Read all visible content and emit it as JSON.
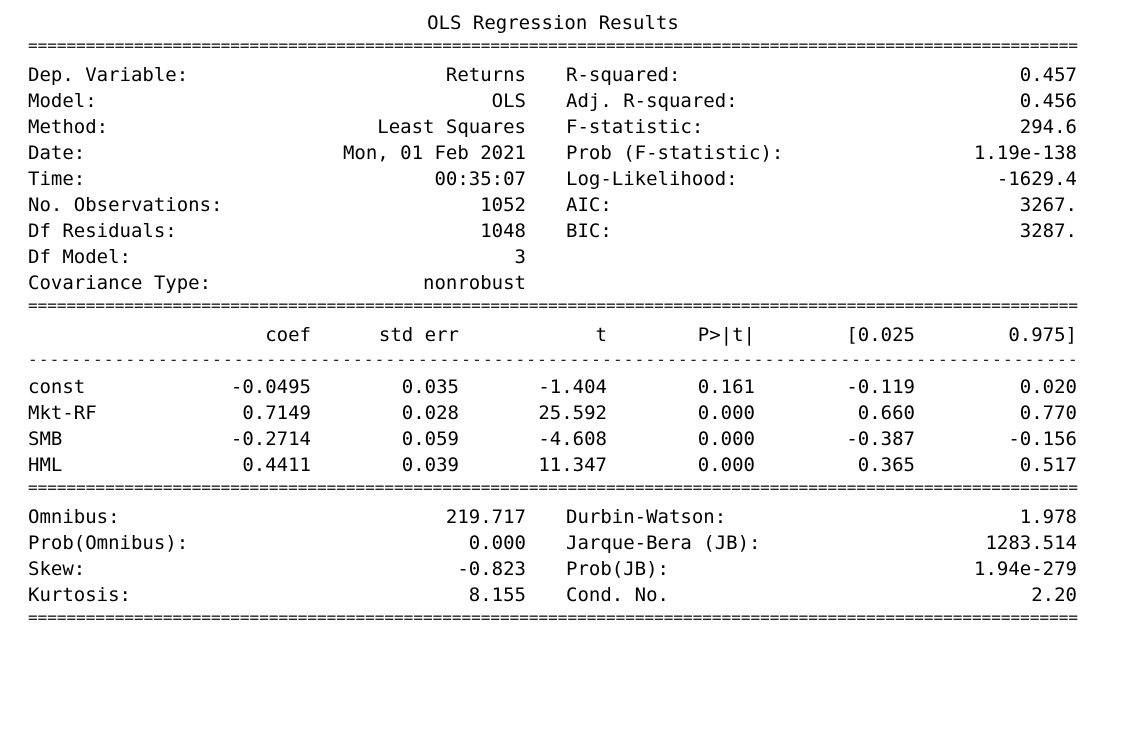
{
  "title": "OLS Regression Results",
  "rules": {
    "double": "==========================================================================================================================================",
    "single": "------------------------------------------------------------------------------------------------------------------------------------------"
  },
  "top_section": [
    {
      "label_left": "Dep. Variable:",
      "value_left": "Returns",
      "label_right": "R-squared:",
      "value_right": "0.457"
    },
    {
      "label_left": "Model:",
      "value_left": "OLS",
      "label_right": "Adj. R-squared:",
      "value_right": "0.456"
    },
    {
      "label_left": "Method:",
      "value_left": "Least Squares",
      "label_right": "F-statistic:",
      "value_right": "294.6"
    },
    {
      "label_left": "Date:",
      "value_left": "Mon, 01 Feb 2021",
      "label_right": "Prob (F-statistic):",
      "value_right": "1.19e-138"
    },
    {
      "label_left": "Time:",
      "value_left": "00:35:07",
      "label_right": "Log-Likelihood:",
      "value_right": "-1629.4"
    },
    {
      "label_left": "No. Observations:",
      "value_left": "1052",
      "label_right": "AIC:",
      "value_right": "3267."
    },
    {
      "label_left": "Df Residuals:",
      "value_left": "1048",
      "label_right": "BIC:",
      "value_right": "3287."
    },
    {
      "label_left": "Df Model:",
      "value_left": "3",
      "label_right": "",
      "value_right": ""
    },
    {
      "label_left": "Covariance Type:",
      "value_left": "nonrobust",
      "label_right": "",
      "value_right": ""
    }
  ],
  "coef_table": {
    "headers": [
      "coef",
      "std err",
      "t",
      "P>|t|",
      "[0.025",
      "0.975]"
    ],
    "rows": [
      {
        "name": "const",
        "coef": "-0.0495",
        "std_err": "0.035",
        "t": "-1.404",
        "p": "0.161",
        "ci_low": "-0.119",
        "ci_high": "0.020"
      },
      {
        "name": "Mkt-RF",
        "coef": "0.7149",
        "std_err": "0.028",
        "t": "25.592",
        "p": "0.000",
        "ci_low": "0.660",
        "ci_high": "0.770"
      },
      {
        "name": "SMB",
        "coef": "-0.2714",
        "std_err": "0.059",
        "t": "-4.608",
        "p": "0.000",
        "ci_low": "-0.387",
        "ci_high": "-0.156"
      },
      {
        "name": "HML",
        "coef": "0.4411",
        "std_err": "0.039",
        "t": "11.347",
        "p": "0.000",
        "ci_low": "0.365",
        "ci_high": "0.517"
      }
    ]
  },
  "bottom_section": [
    {
      "label_left": "Omnibus:",
      "value_left": "219.717",
      "label_right": "Durbin-Watson:",
      "value_right": "1.978"
    },
    {
      "label_left": "Prob(Omnibus):",
      "value_left": "0.000",
      "label_right": "Jarque-Bera (JB):",
      "value_right": "1283.514"
    },
    {
      "label_left": "Skew:",
      "value_left": "-0.823",
      "label_right": "Prob(JB):",
      "value_right": "1.94e-279"
    },
    {
      "label_left": "Kurtosis:",
      "value_left": "8.155",
      "label_right": "Cond. No.",
      "value_right": "2.20"
    }
  ]
}
